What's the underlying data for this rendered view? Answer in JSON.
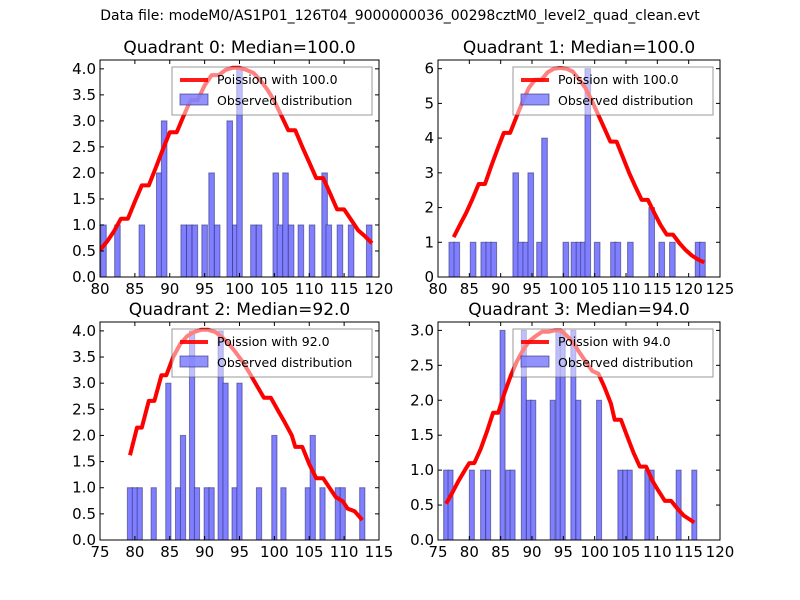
{
  "suptitle": "Data file: modeM0/AS1P01_126T04_9000000036_00298cztM0_level2_quad_clean.evt",
  "colors": {
    "bar_fill": "#7f7fff",
    "bar_edge": "#2a2a6a",
    "curve": "#ff0000"
  },
  "chart_data": [
    {
      "type": "bar",
      "title": "Quadrant 0: Median=100.0",
      "xlim": [
        80,
        120
      ],
      "ylim": [
        0,
        4.17
      ],
      "xticks": [
        80,
        85,
        90,
        95,
        100,
        105,
        110,
        115,
        120
      ],
      "yticks": [
        0.0,
        0.5,
        1.0,
        1.5,
        2.0,
        2.5,
        3.0,
        3.5,
        4.0
      ],
      "ytick_fmt": 1,
      "legend": [
        "Poission with 100.0",
        "Observed distribution"
      ],
      "legend_loc": "upper right",
      "bar_width": 0.8,
      "bars": [
        [
          80.5,
          1
        ],
        [
          82.5,
          1
        ],
        [
          86,
          1
        ],
        [
          88.5,
          2
        ],
        [
          89.2,
          3
        ],
        [
          92,
          1
        ],
        [
          92.8,
          1
        ],
        [
          93.6,
          1
        ],
        [
          95,
          1
        ],
        [
          96,
          2
        ],
        [
          96.8,
          1
        ],
        [
          98.6,
          3
        ],
        [
          99.4,
          1
        ],
        [
          100,
          4
        ],
        [
          102,
          1
        ],
        [
          102.8,
          1
        ],
        [
          105.2,
          2
        ],
        [
          105.8,
          1
        ],
        [
          106.6,
          2
        ],
        [
          107.4,
          1
        ],
        [
          108.8,
          1
        ],
        [
          110.4,
          1
        ],
        [
          112.2,
          2
        ],
        [
          112.8,
          1
        ],
        [
          114.4,
          1
        ],
        [
          116,
          1
        ],
        [
          118.6,
          1
        ]
      ],
      "curve": [
        [
          80,
          0.52
        ],
        [
          81,
          0.68
        ],
        [
          82,
          0.88
        ],
        [
          83,
          1.12
        ],
        [
          84,
          1.12
        ],
        [
          85,
          1.45
        ],
        [
          86,
          1.76
        ],
        [
          87,
          1.76
        ],
        [
          88,
          2.1
        ],
        [
          89,
          2.45
        ],
        [
          90,
          2.78
        ],
        [
          91,
          2.78
        ],
        [
          92,
          3.1
        ],
        [
          93,
          3.4
        ],
        [
          94,
          3.4
        ],
        [
          95,
          3.68
        ],
        [
          96,
          3.88
        ],
        [
          97,
          3.88
        ],
        [
          98,
          3.98
        ],
        [
          99,
          4.02
        ],
        [
          100,
          4.02
        ],
        [
          101,
          3.98
        ],
        [
          102,
          3.92
        ],
        [
          103,
          3.78
        ],
        [
          104,
          3.6
        ],
        [
          105,
          3.38
        ],
        [
          106,
          3.1
        ],
        [
          107,
          2.82
        ],
        [
          108,
          2.82
        ],
        [
          109,
          2.5
        ],
        [
          110,
          2.2
        ],
        [
          111,
          1.9
        ],
        [
          112,
          1.9
        ],
        [
          113,
          1.6
        ],
        [
          114,
          1.3
        ],
        [
          115,
          1.3
        ],
        [
          116,
          1.1
        ],
        [
          117,
          0.9
        ],
        [
          118,
          0.78
        ],
        [
          119,
          0.65
        ]
      ]
    },
    {
      "type": "bar",
      "title": "Quadrant 1: Median=100.0",
      "xlim": [
        80,
        125
      ],
      "ylim": [
        0,
        6.25
      ],
      "xticks": [
        80,
        85,
        90,
        95,
        100,
        105,
        110,
        115,
        120,
        125
      ],
      "yticks": [
        0,
        1,
        2,
        3,
        4,
        5,
        6
      ],
      "ytick_fmt": 0,
      "legend": [
        "Poission with 100.0",
        "Observed distribution"
      ],
      "legend_loc": "upper right",
      "bar_width": 0.9,
      "bars": [
        [
          82.2,
          1
        ],
        [
          83,
          1
        ],
        [
          85.6,
          1
        ],
        [
          87.3,
          1
        ],
        [
          88.1,
          1
        ],
        [
          88.9,
          1
        ],
        [
          92.4,
          3
        ],
        [
          93.2,
          1
        ],
        [
          94,
          1
        ],
        [
          94.8,
          3
        ],
        [
          96.2,
          1
        ],
        [
          97,
          4
        ],
        [
          100.4,
          1
        ],
        [
          101.7,
          1
        ],
        [
          102.5,
          1
        ],
        [
          103.2,
          1
        ],
        [
          103.9,
          6
        ],
        [
          105.4,
          1
        ],
        [
          108,
          1
        ],
        [
          108.7,
          1
        ],
        [
          110.7,
          1
        ],
        [
          114.1,
          2
        ],
        [
          115.7,
          1
        ],
        [
          117.4,
          1
        ],
        [
          121.5,
          1
        ],
        [
          122.2,
          1
        ]
      ],
      "curve": [
        [
          82.5,
          1.15
        ],
        [
          83.5,
          1.5
        ],
        [
          84.5,
          1.85
        ],
        [
          85.5,
          2.25
        ],
        [
          86.5,
          2.68
        ],
        [
          87.5,
          2.68
        ],
        [
          88.5,
          3.2
        ],
        [
          89.5,
          3.68
        ],
        [
          90.5,
          4.15
        ],
        [
          91.5,
          4.15
        ],
        [
          92.5,
          4.6
        ],
        [
          93.5,
          5.05
        ],
        [
          94.5,
          5.45
        ],
        [
          95.5,
          5.68
        ],
        [
          96.5,
          5.68
        ],
        [
          97.5,
          5.9
        ],
        [
          98.5,
          6.0
        ],
        [
          99.5,
          6.02
        ],
        [
          100.5,
          6.0
        ],
        [
          101.5,
          5.92
        ],
        [
          102.5,
          5.7
        ],
        [
          103.5,
          5.45
        ],
        [
          104.5,
          5.1
        ],
        [
          105.5,
          4.7
        ],
        [
          106.5,
          4.3
        ],
        [
          107.5,
          3.9
        ],
        [
          108.5,
          3.9
        ],
        [
          109.5,
          3.45
        ],
        [
          110.5,
          3.0
        ],
        [
          111.5,
          2.6
        ],
        [
          112.5,
          2.22
        ],
        [
          113.5,
          2.22
        ],
        [
          114.5,
          1.85
        ],
        [
          115.5,
          1.5
        ],
        [
          116.5,
          1.22
        ],
        [
          117.5,
          1.22
        ],
        [
          118.5,
          0.98
        ],
        [
          119.5,
          0.78
        ],
        [
          120.5,
          0.62
        ],
        [
          121.5,
          0.5
        ],
        [
          122.5,
          0.42
        ]
      ]
    },
    {
      "type": "bar",
      "title": "Quadrant 2: Median=92.0",
      "xlim": [
        75,
        115
      ],
      "ylim": [
        0,
        4.17
      ],
      "xticks": [
        75,
        80,
        85,
        90,
        95,
        100,
        105,
        110,
        115
      ],
      "yticks": [
        0.0,
        0.5,
        1.0,
        1.5,
        2.0,
        2.5,
        3.0,
        3.5,
        4.0
      ],
      "ytick_fmt": 1,
      "legend": [
        "Poission with 92.0",
        "Observed distribution"
      ],
      "legend_loc": "upper right",
      "bar_width": 0.75,
      "bars": [
        [
          79.3,
          1
        ],
        [
          80,
          1
        ],
        [
          80.7,
          1
        ],
        [
          82.7,
          1
        ],
        [
          84.8,
          3
        ],
        [
          86.2,
          1
        ],
        [
          86.9,
          2
        ],
        [
          88.2,
          4
        ],
        [
          88.9,
          1
        ],
        [
          90.3,
          1
        ],
        [
          91,
          1
        ],
        [
          92.3,
          4
        ],
        [
          93,
          3
        ],
        [
          94.3,
          1
        ],
        [
          95,
          3
        ],
        [
          97.8,
          1
        ],
        [
          100,
          2
        ],
        [
          101.3,
          1
        ],
        [
          104.8,
          1
        ],
        [
          105.5,
          2
        ],
        [
          106.9,
          1
        ],
        [
          109.1,
          1
        ],
        [
          109.8,
          1
        ],
        [
          112.6,
          1
        ]
      ],
      "curve": [
        [
          79.3,
          1.62
        ],
        [
          80.3,
          2.15
        ],
        [
          81,
          2.15
        ],
        [
          82,
          2.66
        ],
        [
          82.8,
          2.66
        ],
        [
          83.8,
          3.15
        ],
        [
          84.5,
          3.15
        ],
        [
          85.5,
          3.5
        ],
        [
          86.5,
          3.75
        ],
        [
          87.5,
          3.9
        ],
        [
          88.5,
          3.98
        ],
        [
          89.5,
          4.02
        ],
        [
          90.5,
          4.02
        ],
        [
          91.5,
          3.98
        ],
        [
          92.5,
          3.88
        ],
        [
          93.5,
          3.75
        ],
        [
          94.5,
          3.58
        ],
        [
          95.5,
          3.4
        ],
        [
          96.5,
          3.18
        ],
        [
          97.5,
          2.95
        ],
        [
          98.5,
          2.72
        ],
        [
          99.5,
          2.72
        ],
        [
          100.5,
          2.48
        ],
        [
          101.5,
          2.25
        ],
        [
          102.5,
          2.0
        ],
        [
          103,
          1.78
        ],
        [
          104,
          1.78
        ],
        [
          105,
          1.45
        ],
        [
          106,
          1.18
        ],
        [
          107,
          1.18
        ],
        [
          108,
          0.98
        ],
        [
          108.8,
          0.82
        ],
        [
          109.8,
          0.74
        ],
        [
          110.5,
          0.6
        ],
        [
          111.5,
          0.55
        ],
        [
          112.6,
          0.38
        ]
      ]
    },
    {
      "type": "bar",
      "title": "Quadrant 3: Median=94.0",
      "xlim": [
        75,
        120
      ],
      "ylim": [
        0,
        3.12
      ],
      "xticks": [
        75,
        80,
        85,
        90,
        95,
        100,
        105,
        110,
        115,
        120
      ],
      "yticks": [
        0.0,
        0.5,
        1.0,
        1.5,
        2.0,
        2.5,
        3.0
      ],
      "ytick_fmt": 1,
      "legend": [
        "Poission with 94.0",
        "Observed distribution"
      ],
      "legend_loc": "upper right",
      "bar_width": 0.8,
      "bars": [
        [
          76.3,
          1
        ],
        [
          77,
          1
        ],
        [
          80.4,
          1
        ],
        [
          82.2,
          1
        ],
        [
          83,
          1
        ],
        [
          85.3,
          3
        ],
        [
          86.2,
          1
        ],
        [
          86.9,
          1
        ],
        [
          88.7,
          3
        ],
        [
          89.5,
          2
        ],
        [
          90.2,
          2
        ],
        [
          93.3,
          2
        ],
        [
          94.2,
          3
        ],
        [
          94.9,
          3
        ],
        [
          96.6,
          3
        ],
        [
          97.4,
          2
        ],
        [
          100.7,
          2
        ],
        [
          104.1,
          1
        ],
        [
          104.9,
          1
        ],
        [
          105.6,
          1
        ],
        [
          108.4,
          1
        ],
        [
          109.1,
          1
        ],
        [
          113.4,
          1
        ],
        [
          115.9,
          1
        ]
      ],
      "curve": [
        [
          76.3,
          0.52
        ],
        [
          77.3,
          0.68
        ],
        [
          78.3,
          0.85
        ],
        [
          79.3,
          1.0
        ],
        [
          80,
          1.1
        ],
        [
          80.8,
          1.1
        ],
        [
          81.8,
          1.3
        ],
        [
          82.8,
          1.55
        ],
        [
          83.8,
          1.82
        ],
        [
          84.6,
          1.82
        ],
        [
          85.6,
          2.1
        ],
        [
          86.6,
          2.35
        ],
        [
          87.6,
          2.56
        ],
        [
          88.6,
          2.72
        ],
        [
          89.6,
          2.85
        ],
        [
          90.6,
          2.92
        ],
        [
          91.6,
          2.98
        ],
        [
          92.6,
          2.98
        ],
        [
          93.6,
          3.0
        ],
        [
          94.6,
          3.0
        ],
        [
          95.6,
          2.92
        ],
        [
          96.6,
          2.82
        ],
        [
          97.6,
          2.68
        ],
        [
          98.6,
          2.55
        ],
        [
          99.6,
          2.42
        ],
        [
          100.6,
          2.38
        ],
        [
          101.6,
          2.18
        ],
        [
          102.6,
          1.95
        ],
        [
          103.2,
          1.72
        ],
        [
          104.2,
          1.72
        ],
        [
          105.2,
          1.48
        ],
        [
          106.2,
          1.25
        ],
        [
          107.2,
          1.05
        ],
        [
          108.2,
          1.05
        ],
        [
          109.2,
          0.85
        ],
        [
          110.2,
          0.7
        ],
        [
          111.2,
          0.56
        ],
        [
          112.2,
          0.56
        ],
        [
          113.2,
          0.45
        ],
        [
          114.2,
          0.35
        ],
        [
          115.9,
          0.25
        ]
      ]
    }
  ]
}
